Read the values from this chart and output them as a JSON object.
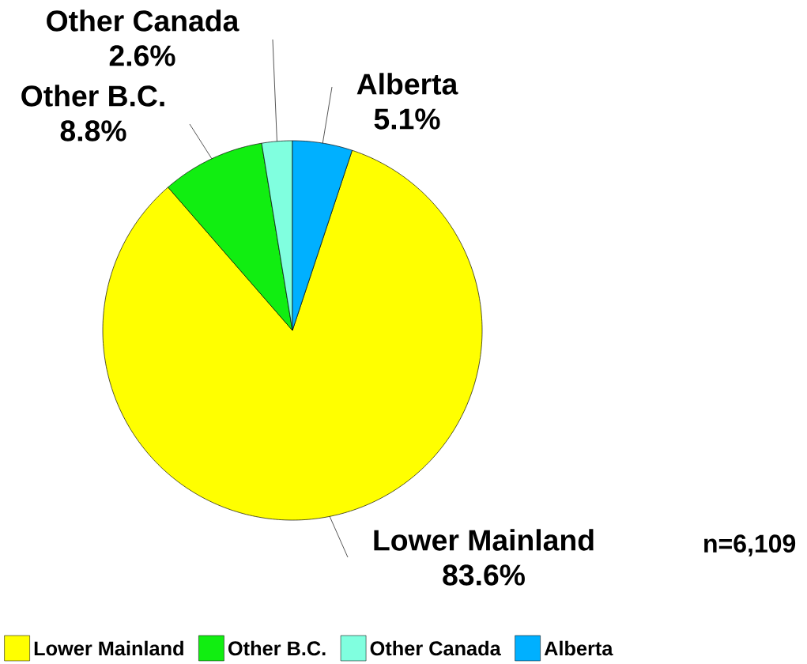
{
  "chart_data": {
    "type": "pie",
    "categories": [
      "Lower Mainland",
      "Other B.C.",
      "Other Canada",
      "Alberta"
    ],
    "values": [
      83.6,
      8.8,
      2.6,
      5.1
    ],
    "colors": [
      "#ffff00",
      "#11ee11",
      "#80ffdf",
      "#00b0ff"
    ],
    "value_labels": [
      "83.6%",
      "8.8%",
      "2.6%",
      "5.1%"
    ],
    "legend": "bottom",
    "annotations": [
      "n=6,109"
    ]
  }
}
